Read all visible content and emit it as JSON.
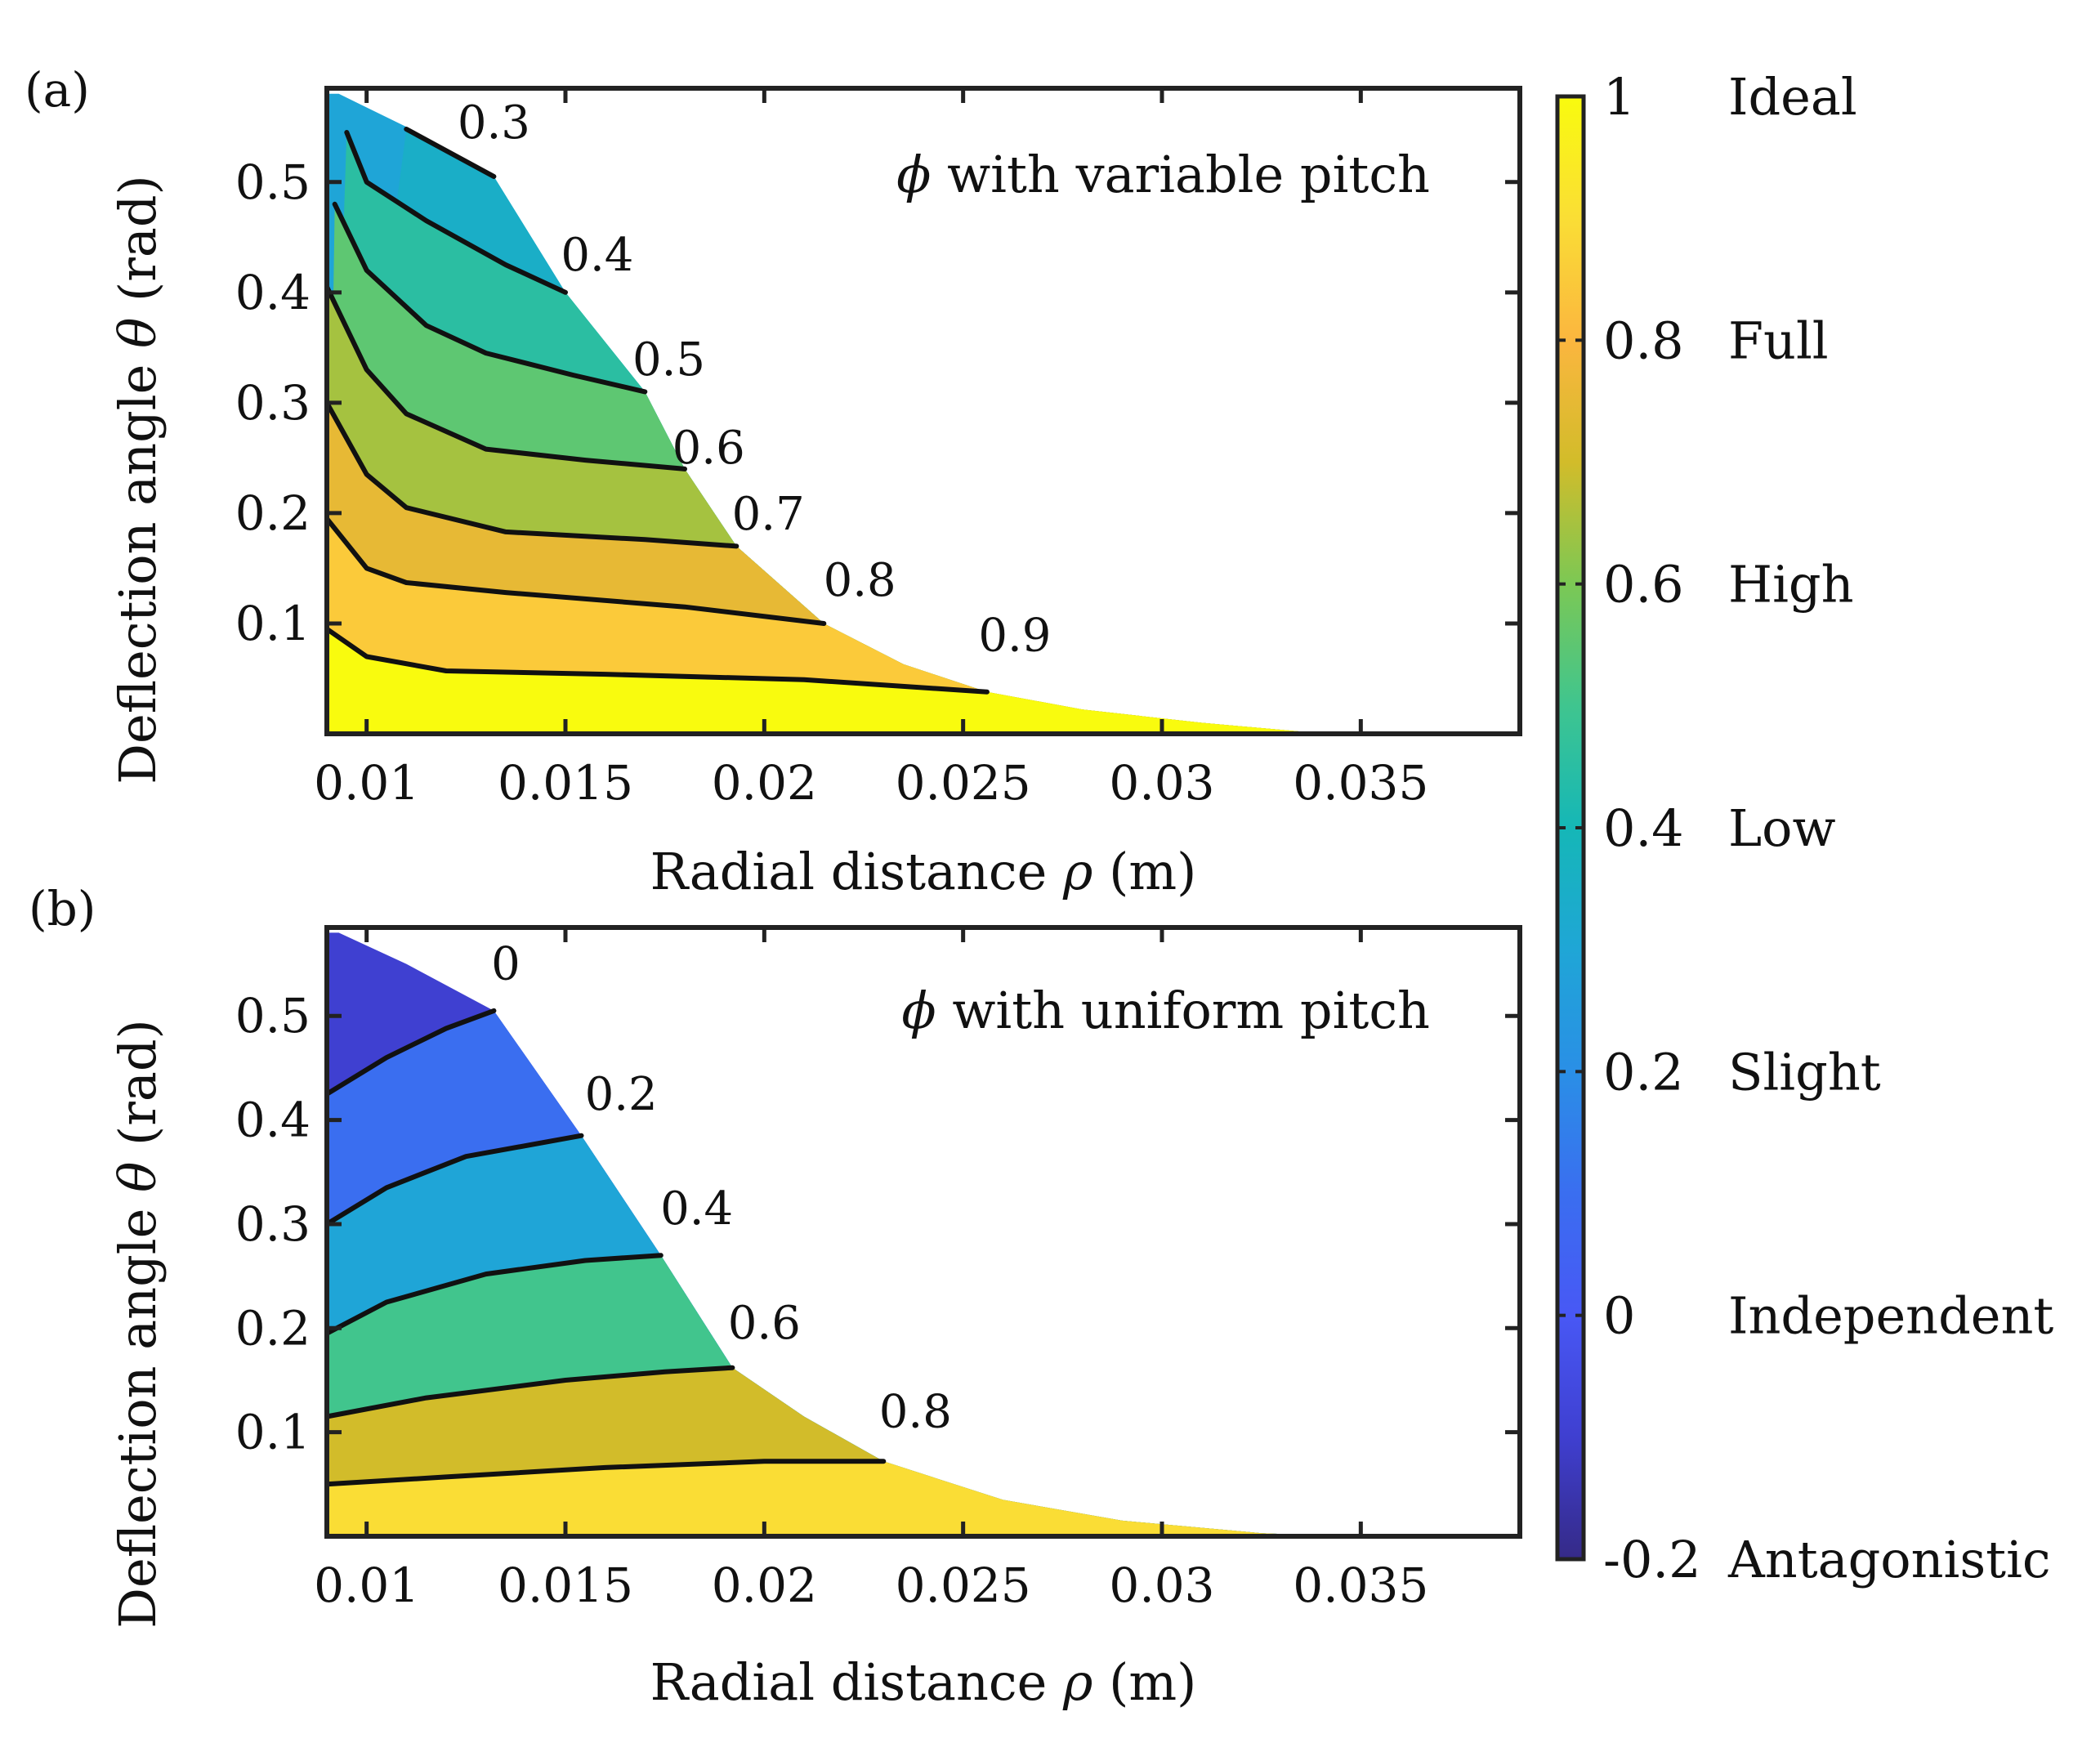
{
  "figure": {
    "colorbar": {
      "min": -0.2,
      "max": 1,
      "ticks": [
        {
          "value": 1,
          "label": "1",
          "name": "Ideal"
        },
        {
          "value": 0.8,
          "label": "0.8",
          "name": "Full"
        },
        {
          "value": 0.6,
          "label": "0.6",
          "name": "High"
        },
        {
          "value": 0.4,
          "label": "0.4",
          "name": "Low"
        },
        {
          "value": 0.2,
          "label": "0.2",
          "name": "Slight"
        },
        {
          "value": 0,
          "label": "0",
          "name": "Independent"
        },
        {
          "value": -0.2,
          "label": "-0.2",
          "name": "Antagonistic"
        }
      ]
    }
  },
  "chart_data": [
    {
      "type": "contour",
      "panel_label": "(a)",
      "title_symbol": "ϕ",
      "title_text": " with variable pitch",
      "xlabel_prefix": "Radial distance ",
      "xlabel_symbol": "ρ",
      "xlabel_suffix": " (m)",
      "ylabel_prefix": "Deflection angle ",
      "ylabel_symbol": "θ",
      "ylabel_suffix": " (rad)",
      "xlim": [
        0.009,
        0.039
      ],
      "ylim": [
        0,
        0.585
      ],
      "xticks": [
        0.01,
        0.015,
        0.02,
        0.025,
        0.03,
        0.035
      ],
      "xtick_labels": [
        "0.01",
        "0.015",
        "0.02",
        "0.025",
        "0.03",
        "0.035"
      ],
      "yticks": [
        0.1,
        0.2,
        0.3,
        0.4,
        0.5
      ],
      "ytick_labels": [
        "0.1",
        "0.2",
        "0.3",
        "0.4",
        "0.5"
      ],
      "boundary": [
        [
          0.0093,
          0.58
        ],
        [
          0.011,
          0.55
        ],
        [
          0.0132,
          0.505
        ],
        [
          0.015,
          0.4
        ],
        [
          0.017,
          0.31
        ],
        [
          0.018,
          0.24
        ],
        [
          0.0193,
          0.17
        ],
        [
          0.0215,
          0.1
        ],
        [
          0.0235,
          0.063
        ],
        [
          0.0256,
          0.038
        ],
        [
          0.028,
          0.022
        ],
        [
          0.031,
          0.01
        ],
        [
          0.0335,
          0.002
        ],
        [
          0.0345,
          0.0
        ]
      ],
      "levels": [
        {
          "value": 0.9,
          "label": "0.9",
          "label_at": [
            0.0263,
            0.075
          ],
          "points": [
            [
              0.009,
              0.095
            ],
            [
              0.01,
              0.07
            ],
            [
              0.012,
              0.057
            ],
            [
              0.016,
              0.054
            ],
            [
              0.021,
              0.049
            ],
            [
              0.0256,
              0.038
            ]
          ]
        },
        {
          "value": 0.8,
          "label": "0.8",
          "label_at": [
            0.0224,
            0.125
          ],
          "points": [
            [
              0.009,
              0.195
            ],
            [
              0.01,
              0.15
            ],
            [
              0.011,
              0.137
            ],
            [
              0.0135,
              0.128
            ],
            [
              0.018,
              0.115
            ],
            [
              0.0215,
              0.1
            ]
          ]
        },
        {
          "value": 0.7,
          "label": "0.7",
          "label_at": [
            0.0201,
            0.185
          ],
          "points": [
            [
              0.009,
              0.3
            ],
            [
              0.01,
              0.235
            ],
            [
              0.011,
              0.205
            ],
            [
              0.0135,
              0.183
            ],
            [
              0.017,
              0.176
            ],
            [
              0.0193,
              0.17
            ]
          ]
        },
        {
          "value": 0.6,
          "label": "0.6",
          "label_at": [
            0.0186,
            0.245
          ],
          "points": [
            [
              0.009,
              0.405
            ],
            [
              0.01,
              0.33
            ],
            [
              0.011,
              0.29
            ],
            [
              0.013,
              0.258
            ],
            [
              0.0155,
              0.248
            ],
            [
              0.018,
              0.24
            ]
          ]
        },
        {
          "value": 0.5,
          "label": "0.5",
          "label_at": [
            0.0176,
            0.325
          ],
          "points": [
            [
              0.0092,
              0.48
            ],
            [
              0.01,
              0.42
            ],
            [
              0.0115,
              0.37
            ],
            [
              0.013,
              0.345
            ],
            [
              0.0152,
              0.325
            ],
            [
              0.017,
              0.31
            ]
          ]
        },
        {
          "value": 0.4,
          "label": "0.4",
          "label_at": [
            0.0158,
            0.42
          ],
          "points": [
            [
              0.0095,
              0.545
            ],
            [
              0.01,
              0.5
            ],
            [
              0.0115,
              0.465
            ],
            [
              0.0135,
              0.425
            ],
            [
              0.015,
              0.4
            ]
          ]
        },
        {
          "value": 0.3,
          "label": "0.3",
          "label_at": [
            0.0132,
            0.54
          ],
          "points": [
            [
              0.011,
              0.548
            ],
            [
              0.0132,
              0.505
            ]
          ]
        }
      ],
      "band_values": [
        1.0,
        0.85,
        0.75,
        0.65,
        0.55,
        0.45,
        0.35,
        0.3
      ]
    },
    {
      "type": "contour",
      "panel_label": "(b)",
      "title_symbol": "ϕ",
      "title_text": " with uniform pitch",
      "xlabel_prefix": "Radial distance ",
      "xlabel_symbol": "ρ",
      "xlabel_suffix": " (m)",
      "ylabel_prefix": "Deflection angle ",
      "ylabel_symbol": "θ",
      "ylabel_suffix": " (rad)",
      "xlim": [
        0.009,
        0.039
      ],
      "ylim": [
        0,
        0.585
      ],
      "xticks": [
        0.01,
        0.015,
        0.02,
        0.025,
        0.03,
        0.035
      ],
      "xtick_labels": [
        "0.01",
        "0.015",
        "0.02",
        "0.025",
        "0.03",
        "0.035"
      ],
      "yticks": [
        0.1,
        0.2,
        0.3,
        0.4,
        0.5
      ],
      "ytick_labels": [
        "0.1",
        "0.2",
        "0.3",
        "0.4",
        "0.5"
      ],
      "boundary": [
        [
          0.0093,
          0.58
        ],
        [
          0.011,
          0.55
        ],
        [
          0.0132,
          0.505
        ],
        [
          0.0154,
          0.385
        ],
        [
          0.0174,
          0.27
        ],
        [
          0.0192,
          0.162
        ],
        [
          0.021,
          0.115
        ],
        [
          0.023,
          0.072
        ],
        [
          0.026,
          0.035
        ],
        [
          0.029,
          0.015
        ],
        [
          0.0325,
          0.003
        ],
        [
          0.0345,
          0.0
        ]
      ],
      "levels": [
        {
          "value": 0.8,
          "label": "0.8",
          "label_at": [
            0.0238,
            0.105
          ],
          "points": [
            [
              0.009,
              0.05
            ],
            [
              0.012,
              0.057
            ],
            [
              0.016,
              0.066
            ],
            [
              0.02,
              0.072
            ],
            [
              0.023,
              0.072
            ]
          ]
        },
        {
          "value": 0.6,
          "label": "0.6",
          "label_at": [
            0.02,
            0.19
          ],
          "points": [
            [
              0.009,
              0.115
            ],
            [
              0.0115,
              0.133
            ],
            [
              0.015,
              0.15
            ],
            [
              0.0175,
              0.158
            ],
            [
              0.0192,
              0.162
            ]
          ]
        },
        {
          "value": 0.4,
          "label": "0.4",
          "label_at": [
            0.0183,
            0.3
          ],
          "points": [
            [
              0.009,
              0.195
            ],
            [
              0.0105,
              0.225
            ],
            [
              0.013,
              0.252
            ],
            [
              0.0155,
              0.265
            ],
            [
              0.0174,
              0.27
            ]
          ]
        },
        {
          "value": 0.2,
          "label": "0.2",
          "label_at": [
            0.0164,
            0.41
          ],
          "points": [
            [
              0.009,
              0.3
            ],
            [
              0.0105,
              0.335
            ],
            [
              0.0125,
              0.365
            ],
            [
              0.0154,
              0.385
            ]
          ]
        },
        {
          "value": 0,
          "label": "0",
          "label_at": [
            0.0135,
            0.535
          ],
          "points": [
            [
              0.009,
              0.425
            ],
            [
              0.0105,
              0.46
            ],
            [
              0.012,
              0.488
            ],
            [
              0.0132,
              0.505
            ]
          ]
        }
      ],
      "band_values": [
        0.9,
        0.7,
        0.5,
        0.3,
        0.1,
        -0.1
      ]
    }
  ]
}
